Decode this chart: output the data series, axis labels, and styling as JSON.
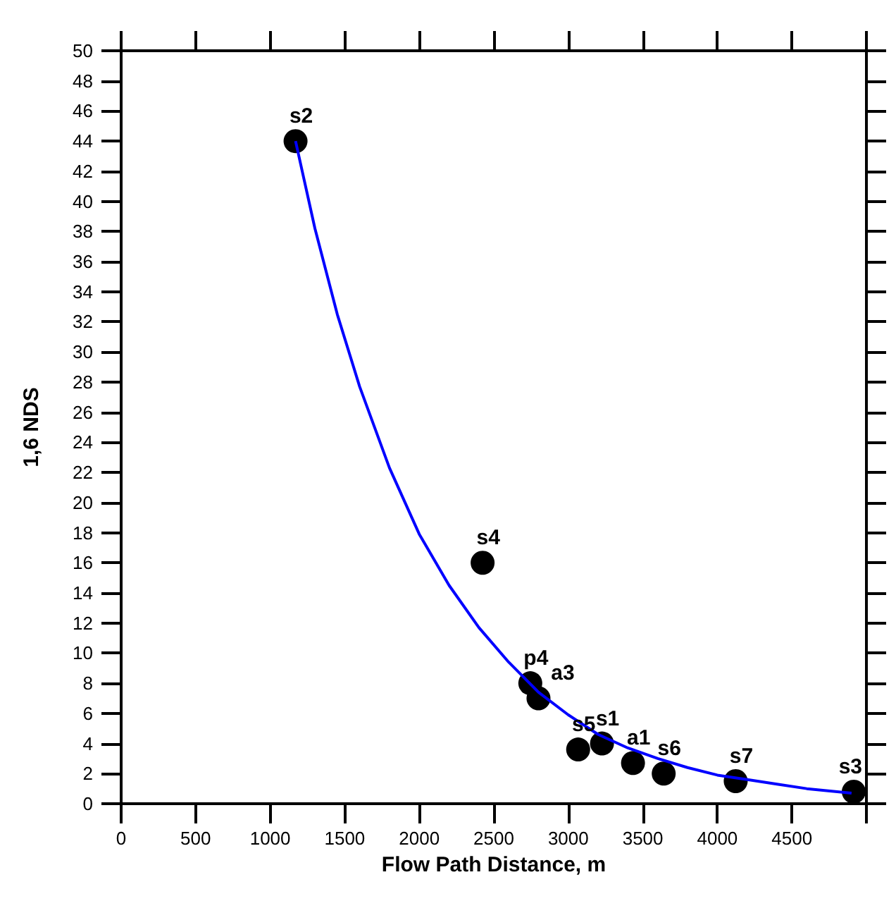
{
  "chart_data": {
    "type": "scatter",
    "xlabel": "Flow Path Distance, m",
    "ylabel": "1,6 NDS",
    "xlim": [
      0,
      5000
    ],
    "xticks": [
      0,
      500,
      1000,
      1500,
      2000,
      2500,
      3000,
      3500,
      4000,
      4500,
      {
        "value": 5000,
        "label": null
      }
    ],
    "ylim": [
      0,
      50
    ],
    "yticks": [
      0,
      2,
      4,
      6,
      8,
      10,
      12,
      14,
      16,
      18,
      20,
      22,
      24,
      26,
      28,
      30,
      32,
      34,
      36,
      38,
      40,
      42,
      44,
      46,
      48,
      50
    ],
    "grid": false,
    "marker": "circle",
    "series": [
      {
        "type": "scatter",
        "color": "#000000",
        "x": [
          1170,
          2425,
          2745,
          2800,
          3066,
          3226,
          3434,
          3640,
          4123,
          4915
        ],
        "values": [
          44,
          16,
          8.0,
          7.0,
          3.6,
          4.0,
          2.7,
          2.0,
          1.5,
          0.8
        ]
      },
      {
        "type": "line",
        "color": "#0000ff",
        "marker": "none",
        "line_style": "solid",
        "x": [
          1170,
          1300,
          1450,
          1600,
          1800,
          2000,
          2200,
          2400,
          2600,
          2800,
          3000,
          3200,
          3400,
          3600,
          3800,
          4000,
          4200,
          4400,
          4600,
          4900
        ],
        "values": [
          44,
          38.2,
          32.5,
          27.7,
          22.3,
          17.9,
          14.5,
          11.7,
          9.4,
          7.4,
          5.9,
          4.6,
          3.7,
          3.0,
          2.4,
          1.9,
          1.6,
          1.3,
          1.0,
          0.7
        ]
      }
    ],
    "annotations": [
      {
        "text": "s2",
        "x": 1170,
        "y": 44
      },
      {
        "text": "s4",
        "x": 2425,
        "y": 16
      },
      {
        "text": "p4",
        "x": 2745,
        "y": 8.0
      },
      {
        "text": "a3",
        "x": 2800,
        "y": 7.0
      },
      {
        "text": "s5",
        "x": 3066,
        "y": 3.6
      },
      {
        "text": "s1",
        "x": 3226,
        "y": 4.0
      },
      {
        "text": "a1",
        "x": 3434,
        "y": 2.7
      },
      {
        "text": "s6",
        "x": 3640,
        "y": 2.0
      },
      {
        "text": "s7",
        "x": 4123,
        "y": 1.5
      },
      {
        "text": "s3",
        "x": 4915,
        "y": 0.8
      }
    ]
  }
}
